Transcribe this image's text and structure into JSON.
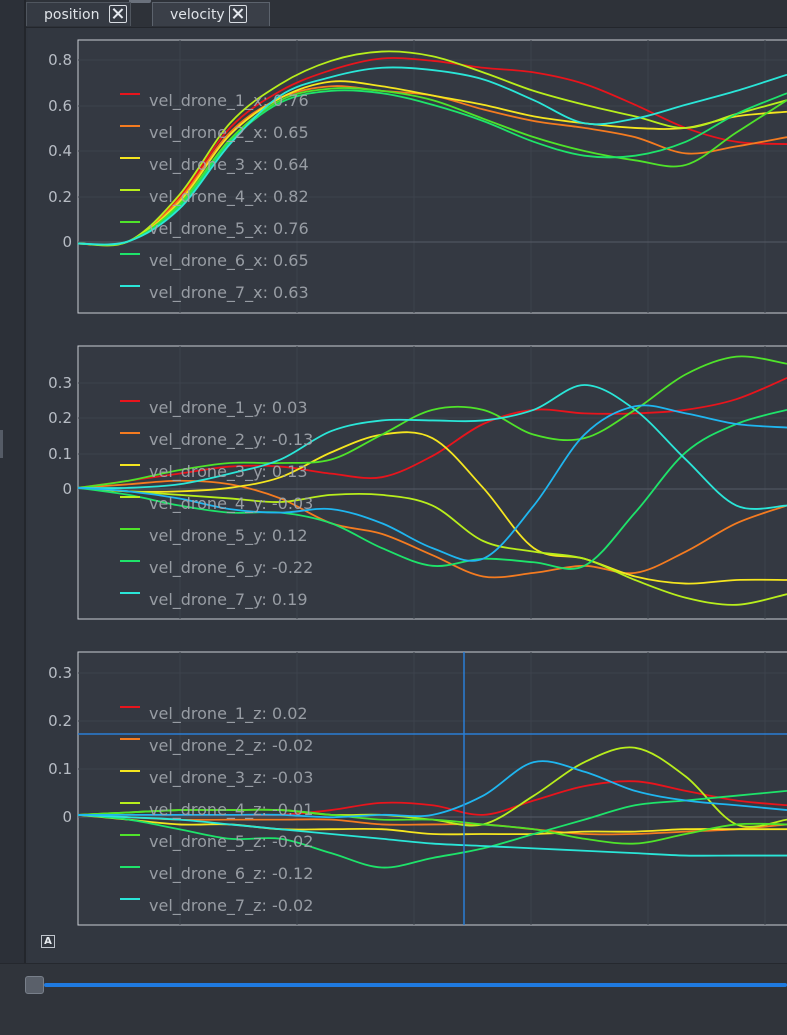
{
  "tabs": [
    {
      "label": "position"
    },
    {
      "label": "velocity"
    }
  ],
  "colors": {
    "drone_1": "#e8141c",
    "drone_2": "#f47b20",
    "drone_3": "#f5e61f",
    "drone_4": "#b8ee1c",
    "drone_5": "#4fe32a",
    "drone_6": "#1ee36a",
    "drone_7": "#2ae6d8",
    "extra_blue": "#1fb6f0",
    "cursor": "#2a7ed4"
  },
  "icons": {
    "autoscale": "A",
    "tab_close": "close-icon"
  },
  "chart_data": [
    {
      "type": "line",
      "legend": [
        "vel_drone_1_x: 0.76",
        "vel_drone_2_x: 0.65",
        "vel_drone_3_x: 0.64",
        "vel_drone_4_x: 0.82",
        "vel_drone_5_x: 0.76",
        "vel_drone_6_x: 0.65",
        "vel_drone_7_x: 0.63"
      ],
      "yticks": [
        "0.8",
        "0.6",
        "0.4",
        "0.2",
        "0"
      ],
      "ylim": [
        -0.3,
        0.88
      ],
      "series": [
        {
          "color": "drone_1",
          "values": [
            0,
            0.01,
            0.2,
            0.5,
            0.66,
            0.75,
            0.8,
            0.79,
            0.76,
            0.74,
            0.69,
            0.6,
            0.5,
            0.44,
            0.43
          ]
        },
        {
          "color": "drone_2",
          "values": [
            0,
            0.01,
            0.19,
            0.48,
            0.63,
            0.68,
            0.66,
            0.64,
            0.58,
            0.53,
            0.5,
            0.46,
            0.39,
            0.42,
            0.46
          ]
        },
        {
          "color": "drone_3",
          "values": [
            0,
            0.01,
            0.18,
            0.47,
            0.63,
            0.7,
            0.68,
            0.64,
            0.6,
            0.55,
            0.52,
            0.5,
            0.5,
            0.55,
            0.57
          ]
        },
        {
          "color": "drone_4",
          "values": [
            0,
            0.01,
            0.21,
            0.52,
            0.69,
            0.79,
            0.83,
            0.81,
            0.74,
            0.66,
            0.6,
            0.55,
            0.5,
            0.56,
            0.62
          ]
        },
        {
          "color": "drone_5",
          "values": [
            0,
            0.01,
            0.17,
            0.45,
            0.62,
            0.67,
            0.66,
            0.62,
            0.54,
            0.46,
            0.4,
            0.36,
            0.34,
            0.48,
            0.62
          ]
        },
        {
          "color": "drone_6",
          "values": [
            0,
            0.01,
            0.16,
            0.44,
            0.61,
            0.66,
            0.65,
            0.6,
            0.53,
            0.44,
            0.38,
            0.38,
            0.44,
            0.56,
            0.65
          ]
        },
        {
          "color": "drone_7",
          "values": [
            0,
            0.01,
            0.15,
            0.43,
            0.64,
            0.72,
            0.76,
            0.75,
            0.71,
            0.62,
            0.52,
            0.54,
            0.6,
            0.66,
            0.73
          ]
        }
      ]
    },
    {
      "type": "line",
      "legend": [
        "vel_drone_1_y: 0.03",
        "vel_drone_2_y: -0.13",
        "vel_drone_3_y: 0.13",
        "vel_drone_4_y: -0.03",
        "vel_drone_5_y: 0.12",
        "vel_drone_6_y: -0.22",
        "vel_drone_7_y: 0.19"
      ],
      "yticks": [
        "0.3",
        "0.2",
        "0.1",
        "0"
      ],
      "ylim": [
        -0.37,
        0.4
      ],
      "series": [
        {
          "color": "drone_1",
          "values": [
            0,
            0.02,
            0.04,
            0.06,
            0.06,
            0.04,
            0.03,
            0.09,
            0.18,
            0.22,
            0.21,
            0.21,
            0.22,
            0.25,
            0.31
          ]
        },
        {
          "color": "drone_2",
          "values": [
            0,
            0.01,
            0.02,
            0.01,
            -0.03,
            -0.1,
            -0.13,
            -0.19,
            -0.25,
            -0.24,
            -0.22,
            -0.24,
            -0.18,
            -0.1,
            -0.05
          ]
        },
        {
          "color": "drone_3",
          "values": [
            0,
            -0.01,
            -0.01,
            0.0,
            0.03,
            0.1,
            0.15,
            0.14,
            0.0,
            -0.17,
            -0.2,
            -0.25,
            -0.27,
            -0.26,
            -0.26
          ]
        },
        {
          "color": "drone_4",
          "values": [
            0,
            -0.01,
            -0.02,
            -0.03,
            -0.04,
            -0.02,
            -0.02,
            -0.05,
            -0.15,
            -0.18,
            -0.2,
            -0.26,
            -0.31,
            -0.33,
            -0.3
          ]
        },
        {
          "color": "drone_5",
          "values": [
            0,
            0.02,
            0.05,
            0.07,
            0.07,
            0.08,
            0.15,
            0.22,
            0.22,
            0.15,
            0.14,
            0.22,
            0.32,
            0.37,
            0.35
          ]
        },
        {
          "color": "drone_6",
          "values": [
            0,
            -0.02,
            -0.05,
            -0.07,
            -0.07,
            -0.1,
            -0.17,
            -0.22,
            -0.2,
            -0.21,
            -0.22,
            -0.07,
            0.1,
            0.18,
            0.22
          ]
        },
        {
          "color": "drone_7",
          "values": [
            0,
            0.0,
            0.01,
            0.04,
            0.08,
            0.16,
            0.19,
            0.19,
            0.19,
            0.22,
            0.29,
            0.22,
            0.08,
            -0.05,
            -0.05
          ]
        },
        {
          "color": "extra_blue",
          "values": [
            0,
            -0.01,
            -0.03,
            -0.06,
            -0.07,
            -0.06,
            -0.1,
            -0.17,
            -0.2,
            -0.05,
            0.15,
            0.23,
            0.21,
            0.18,
            0.17
          ]
        }
      ]
    },
    {
      "type": "line",
      "legend": [
        "vel_drone_1_z: 0.02",
        "vel_drone_2_z: -0.02",
        "vel_drone_3_z: -0.03",
        "vel_drone_4_z: -0.01",
        "vel_drone_5_z: -0.02",
        "vel_drone_6_z: -0.12",
        "vel_drone_7_z: -0.02"
      ],
      "yticks": [
        "0.3",
        "0.2",
        "0.1",
        "0"
      ],
      "ylim": [
        -0.23,
        0.34
      ],
      "series": [
        {
          "color": "drone_1",
          "values": [
            0,
            0.0,
            0.0,
            0.0,
            0.0,
            0.01,
            0.025,
            0.02,
            0.0,
            0.03,
            0.06,
            0.07,
            0.05,
            0.03,
            0.02
          ]
        },
        {
          "color": "drone_2",
          "values": [
            0,
            -0.005,
            -0.01,
            -0.01,
            -0.01,
            -0.01,
            -0.02,
            -0.02,
            -0.02,
            -0.03,
            -0.04,
            -0.04,
            -0.035,
            -0.03,
            -0.02
          ]
        },
        {
          "color": "drone_3",
          "values": [
            0,
            -0.01,
            -0.02,
            -0.02,
            -0.03,
            -0.03,
            -0.03,
            -0.04,
            -0.04,
            -0.04,
            -0.035,
            -0.035,
            -0.03,
            -0.03,
            -0.03
          ]
        },
        {
          "color": "drone_4",
          "values": [
            0,
            0.005,
            0.01,
            0.01,
            0.01,
            0.0,
            0.0,
            -0.01,
            -0.02,
            0.04,
            0.11,
            0.14,
            0.08,
            -0.02,
            -0.01
          ]
        },
        {
          "color": "drone_5",
          "values": [
            0,
            0.005,
            0.01,
            0.01,
            0.01,
            0.0,
            -0.01,
            -0.01,
            -0.02,
            -0.03,
            -0.05,
            -0.06,
            -0.04,
            -0.02,
            -0.02
          ]
        },
        {
          "color": "drone_6",
          "values": [
            0,
            -0.01,
            -0.03,
            -0.05,
            -0.05,
            -0.08,
            -0.11,
            -0.09,
            -0.07,
            -0.04,
            -0.01,
            0.02,
            0.03,
            0.04,
            0.05
          ]
        },
        {
          "color": "drone_7",
          "values": [
            0,
            -0.005,
            -0.01,
            -0.02,
            -0.03,
            -0.04,
            -0.05,
            -0.06,
            -0.065,
            -0.07,
            -0.075,
            -0.08,
            -0.085,
            -0.085,
            -0.085
          ]
        },
        {
          "color": "extra_blue",
          "values": [
            0,
            0.0,
            0.0,
            0.0,
            0.0,
            -0.005,
            0.0,
            0.0,
            0.04,
            0.11,
            0.09,
            0.05,
            0.03,
            0.02,
            0.01
          ]
        }
      ]
    }
  ]
}
